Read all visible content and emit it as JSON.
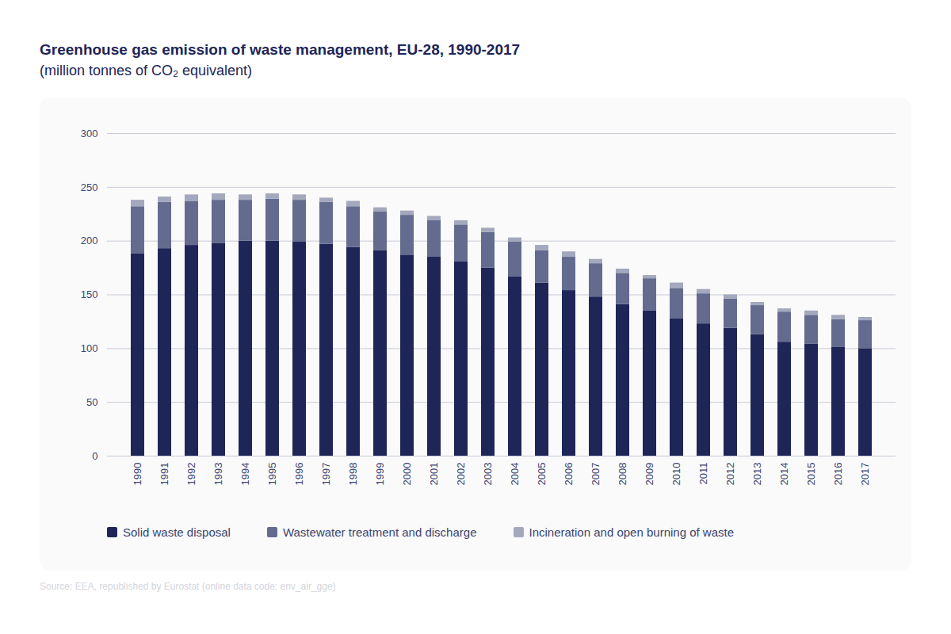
{
  "chart_data": {
    "type": "bar",
    "stacked": true,
    "grid": true,
    "title": "Greenhouse gas emission of waste management, EU-28, 1990-2017",
    "subtitle": "(million tonnes of CO₂ equivalent)",
    "source": "Source: EEA, republished by Eurostat (online data code: env_air_gge)",
    "categories": [
      "1990",
      "1991",
      "1992",
      "1993",
      "1994",
      "1995",
      "1996",
      "1997",
      "1998",
      "1999",
      "2000",
      "2001",
      "2002",
      "2003",
      "2004",
      "2005",
      "2006",
      "2007",
      "2008",
      "2009",
      "2010",
      "2011",
      "2012",
      "2013",
      "2014",
      "2015",
      "2016",
      "2017"
    ],
    "ylim": [
      0,
      300
    ],
    "yticks": [
      0,
      50,
      100,
      150,
      200,
      250,
      300
    ],
    "series": [
      {
        "name": "Solid waste disposal",
        "color": "#1e2657",
        "values": [
          188,
          193,
          196,
          198,
          200,
          200,
          199,
          197,
          194,
          191,
          187,
          185,
          181,
          175,
          167,
          161,
          154,
          148,
          141,
          135,
          128,
          123,
          119,
          113,
          106,
          104,
          101,
          100
        ]
      },
      {
        "name": "Wastewater treatment and discharge",
        "color": "#636b8f",
        "values": [
          44,
          43,
          41,
          40,
          38,
          39,
          39,
          39,
          38,
          36,
          37,
          34,
          34,
          33,
          32,
          30,
          31,
          31,
          29,
          30,
          28,
          28,
          27,
          27,
          28,
          27,
          26,
          26
        ]
      },
      {
        "name": "Incineration and open burning of waste",
        "color": "#a3a8bd",
        "values": [
          6,
          5,
          6,
          6,
          5,
          5,
          5,
          4,
          5,
          4,
          4,
          4,
          4,
          4,
          4,
          5,
          5,
          4,
          4,
          3,
          5,
          4,
          4,
          3,
          3,
          4,
          4,
          3
        ]
      }
    ]
  }
}
